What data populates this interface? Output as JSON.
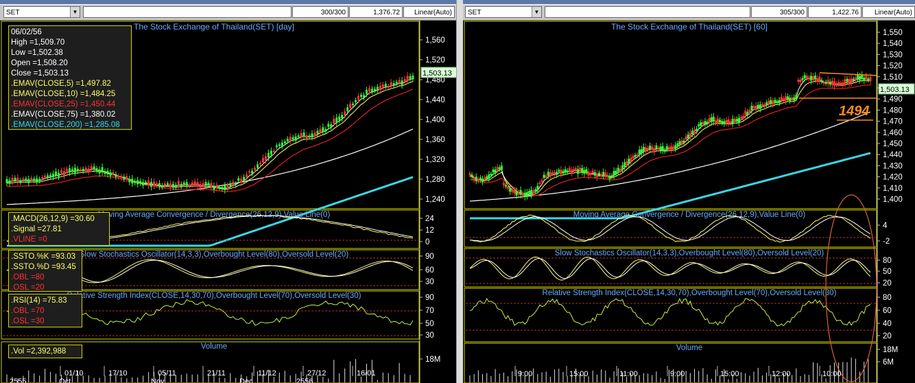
{
  "left": {
    "symbol": "SET",
    "bars": "300/300",
    "value": "1,376.72",
    "scale": "Linear(Auto)",
    "main_title": "The Stock Exchange of Thailand(SET) [day]",
    "last_price": "1,503.13",
    "price_ticks": [
      "1,560",
      "1,520",
      "1,480",
      "1,440",
      "1,400",
      "1,360",
      "1,320",
      "1,280",
      "1,240"
    ],
    "info": {
      "date": "06/02/56",
      "high": "High  =1,509.70",
      "low": "Low  =1,502.38",
      "open": "Open  =1,508.20",
      "close": "Close  =1,503.13",
      "ema5": ".EMAV(CLOSE,5)  =1,497.82",
      "ema10": ".EMAV(CLOSE,10)  =1,484.25",
      "ema25": ".EMAV(CLOSE,25)  =1,450.44",
      "ema75": ".EMAV(CLOSE,75)  =1,380.02",
      "ema200": ".EMAV(CLOSE,200)  =1,285.08"
    },
    "macd_title": "Moving Average Convergence / Divergence(26,12,9),Value Line(0)",
    "macd_ticks": [
      "24",
      "12",
      "0"
    ],
    "macd_legend": {
      "macd": ".MACD(26,12,9)   =30.60",
      "signal": ".Signal  =27.81",
      "vline": ".VLINE  =0"
    },
    "ssto_title": "Slow Stochastics Oscillator(14,3,3),Overbought Level(80),Oversold Level(20)",
    "ssto_ticks": [
      "90",
      "60",
      "30"
    ],
    "ssto_legend": {
      "k": ".SSTO.%K   =93.03",
      "d": ".SSTO.%D   =93.45",
      "obl": ".OBL   =80",
      "osl": ".OSL   =20"
    },
    "rsi_title": "Relative Strength Index(CLOSE,14,30,70),Overbought Level(70),Oversold Level(30)",
    "rsi_ticks": [
      "90",
      "70",
      "50",
      "30"
    ],
    "rsi_legend": {
      "rsi": ".RSI(14)   =75.83",
      "obl": ".OBL   =70",
      "osl": ".OSL   =30"
    },
    "vol_title": "Volume",
    "vol_ticks": [
      "18M"
    ],
    "vol_legend": ".Vol   =2,392,988",
    "date_ticks": [
      "01/10",
      "17/10",
      "05/11",
      "21/11",
      "11/12",
      "27/12",
      "16/01"
    ],
    "bottom_labels": [
      "2555",
      "Oct",
      "Nov",
      "Dec",
      "2556"
    ]
  },
  "right": {
    "symbol": "SET",
    "bars": "305/300",
    "value": "1,422.76",
    "scale": "Linear(Auto)",
    "main_title": "The Stock Exchange of Thailand(SET) [60]",
    "last_price": "1,503.13",
    "annotation": "1494",
    "price_ticks": [
      "1,550",
      "1,540",
      "1,530",
      "1,520",
      "1,510",
      "1,500",
      "1,490",
      "1,480",
      "1,470",
      "1,460",
      "1,450",
      "1,440",
      "1,430",
      "1,420",
      "1,410",
      "1,400"
    ],
    "macd_title": "Moving Average Convergence / Divergence(26,12,9),Value Line(0)",
    "macd_ticks": [
      "4",
      "-2"
    ],
    "ssto_title": "Slow Stochastics Oscillator(14,3,3),Overbought Level(80),Oversold Level(20)",
    "ssto_ticks": [
      "80",
      "50",
      "20"
    ],
    "rsi_title": "Relative Strength Index(CLOSE,14,30,70),Overbought Level(70),Oversold Level(30)",
    "rsi_ticks": [
      "80",
      "60",
      "40",
      "20"
    ],
    "vol_title": "Volume",
    "vol_ticks": [
      "18M",
      "6M"
    ],
    "time_ticks": [
      "9:00",
      "15:00",
      "11:00",
      "9:00",
      "15:00",
      "12:00",
      "10:00"
    ]
  },
  "colors": {
    "ema5": "#ffffff",
    "ema10": "#ffff66",
    "ema25": "#e02020",
    "ema75": "#ffffff",
    "ema200": "#38d8e8",
    "title_text": "#6aa8ff",
    "up_candle": "#33ff33",
    "down_candle": "#ff3333",
    "grid_dash": "#b03030",
    "panel_border": "#d4d400",
    "annotation": "#ff8c1a"
  }
}
